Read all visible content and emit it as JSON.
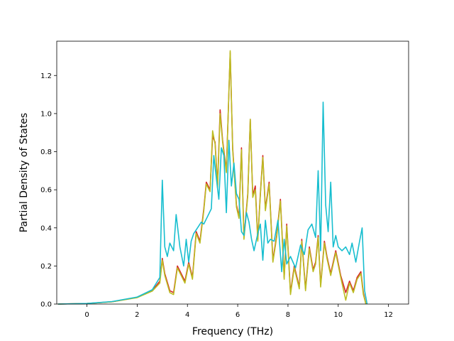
{
  "chart_data": {
    "type": "line",
    "title": "",
    "xlabel": "Frequency (THz)",
    "ylabel": "Partial Density of States",
    "xlim": [
      -1.2,
      12.8
    ],
    "ylim": [
      0,
      1.38
    ],
    "xticks": [
      0,
      2,
      4,
      6,
      8,
      10,
      12
    ],
    "yticks": [
      0.0,
      0.2,
      0.4,
      0.6,
      0.8,
      1.0,
      1.2
    ],
    "xtick_labels": [
      "0",
      "2",
      "4",
      "6",
      "8",
      "10",
      "12"
    ],
    "ytick_labels": [
      "0.0",
      "0.2",
      "0.4",
      "0.6",
      "0.8",
      "1.0",
      "1.2"
    ],
    "grid": false,
    "legend": "none",
    "series": [
      {
        "color": "#d62728",
        "points": [
          [
            -1.15,
            0
          ],
          [
            0,
            0.003
          ],
          [
            1,
            0.012
          ],
          [
            2,
            0.035
          ],
          [
            2.6,
            0.07
          ],
          [
            2.9,
            0.12
          ],
          [
            3.0,
            0.24
          ],
          [
            3.1,
            0.16
          ],
          [
            3.3,
            0.07
          ],
          [
            3.45,
            0.06
          ],
          [
            3.6,
            0.2
          ],
          [
            3.75,
            0.16
          ],
          [
            3.9,
            0.12
          ],
          [
            4.05,
            0.22
          ],
          [
            4.2,
            0.14
          ],
          [
            4.35,
            0.38
          ],
          [
            4.5,
            0.33
          ],
          [
            4.65,
            0.5
          ],
          [
            4.75,
            0.64
          ],
          [
            4.9,
            0.6
          ],
          [
            5.0,
            0.88
          ],
          [
            5.1,
            0.85
          ],
          [
            5.2,
            0.62
          ],
          [
            5.3,
            1.02
          ],
          [
            5.4,
            0.86
          ],
          [
            5.55,
            0.7
          ],
          [
            5.7,
            1.32
          ],
          [
            5.8,
            0.82
          ],
          [
            5.95,
            0.52
          ],
          [
            6.05,
            0.46
          ],
          [
            6.15,
            0.82
          ],
          [
            6.25,
            0.35
          ],
          [
            6.4,
            0.58
          ],
          [
            6.5,
            0.97
          ],
          [
            6.6,
            0.57
          ],
          [
            6.7,
            0.62
          ],
          [
            6.8,
            0.34
          ],
          [
            6.9,
            0.58
          ],
          [
            7.0,
            0.78
          ],
          [
            7.1,
            0.5
          ],
          [
            7.25,
            0.64
          ],
          [
            7.4,
            0.23
          ],
          [
            7.55,
            0.36
          ],
          [
            7.7,
            0.55
          ],
          [
            7.85,
            0.14
          ],
          [
            7.95,
            0.42
          ],
          [
            8.1,
            0.06
          ],
          [
            8.25,
            0.2
          ],
          [
            8.45,
            0.09
          ],
          [
            8.55,
            0.34
          ],
          [
            8.7,
            0.08
          ],
          [
            8.85,
            0.3
          ],
          [
            9.0,
            0.18
          ],
          [
            9.1,
            0.22
          ],
          [
            9.2,
            0.36
          ],
          [
            9.3,
            0.1
          ],
          [
            9.45,
            0.33
          ],
          [
            9.55,
            0.25
          ],
          [
            9.7,
            0.16
          ],
          [
            9.9,
            0.28
          ],
          [
            10.1,
            0.15
          ],
          [
            10.3,
            0.06
          ],
          [
            10.45,
            0.12
          ],
          [
            10.6,
            0.07
          ],
          [
            10.75,
            0.14
          ],
          [
            10.9,
            0.17
          ],
          [
            11.0,
            0.06
          ],
          [
            11.1,
            0
          ]
        ]
      },
      {
        "color": "#bcbd22",
        "points": [
          [
            -1.15,
            0
          ],
          [
            0,
            0.003
          ],
          [
            1,
            0.012
          ],
          [
            2,
            0.034
          ],
          [
            2.6,
            0.068
          ],
          [
            2.9,
            0.11
          ],
          [
            3.0,
            0.23
          ],
          [
            3.1,
            0.15
          ],
          [
            3.3,
            0.06
          ],
          [
            3.45,
            0.05
          ],
          [
            3.6,
            0.19
          ],
          [
            3.75,
            0.15
          ],
          [
            3.9,
            0.11
          ],
          [
            4.05,
            0.21
          ],
          [
            4.2,
            0.13
          ],
          [
            4.35,
            0.37
          ],
          [
            4.5,
            0.32
          ],
          [
            4.65,
            0.49
          ],
          [
            4.75,
            0.63
          ],
          [
            4.9,
            0.59
          ],
          [
            5.0,
            0.91
          ],
          [
            5.1,
            0.84
          ],
          [
            5.2,
            0.61
          ],
          [
            5.3,
            1.0
          ],
          [
            5.4,
            0.85
          ],
          [
            5.55,
            0.69
          ],
          [
            5.7,
            1.33
          ],
          [
            5.8,
            0.81
          ],
          [
            5.95,
            0.51
          ],
          [
            6.05,
            0.45
          ],
          [
            6.15,
            0.81
          ],
          [
            6.25,
            0.34
          ],
          [
            6.4,
            0.57
          ],
          [
            6.5,
            0.97
          ],
          [
            6.6,
            0.56
          ],
          [
            6.7,
            0.6
          ],
          [
            6.8,
            0.33
          ],
          [
            6.9,
            0.57
          ],
          [
            7.0,
            0.77
          ],
          [
            7.1,
            0.49
          ],
          [
            7.25,
            0.63
          ],
          [
            7.4,
            0.22
          ],
          [
            7.55,
            0.35
          ],
          [
            7.7,
            0.54
          ],
          [
            7.85,
            0.13
          ],
          [
            7.95,
            0.41
          ],
          [
            8.1,
            0.05
          ],
          [
            8.25,
            0.19
          ],
          [
            8.45,
            0.08
          ],
          [
            8.55,
            0.33
          ],
          [
            8.7,
            0.07
          ],
          [
            8.85,
            0.29
          ],
          [
            9.0,
            0.17
          ],
          [
            9.1,
            0.21
          ],
          [
            9.2,
            0.35
          ],
          [
            9.3,
            0.09
          ],
          [
            9.45,
            0.32
          ],
          [
            9.55,
            0.24
          ],
          [
            9.7,
            0.15
          ],
          [
            9.9,
            0.27
          ],
          [
            10.1,
            0.14
          ],
          [
            10.3,
            0.02
          ],
          [
            10.45,
            0.11
          ],
          [
            10.6,
            0.06
          ],
          [
            10.75,
            0.13
          ],
          [
            10.9,
            0.16
          ],
          [
            11.0,
            0.05
          ],
          [
            11.1,
            0
          ]
        ]
      },
      {
        "color": "#17becf",
        "points": [
          [
            -1.15,
            0
          ],
          [
            0,
            0.003
          ],
          [
            1,
            0.013
          ],
          [
            2,
            0.037
          ],
          [
            2.6,
            0.075
          ],
          [
            2.9,
            0.14
          ],
          [
            3.0,
            0.65
          ],
          [
            3.1,
            0.3
          ],
          [
            3.2,
            0.25
          ],
          [
            3.3,
            0.32
          ],
          [
            3.45,
            0.28
          ],
          [
            3.55,
            0.47
          ],
          [
            3.7,
            0.3
          ],
          [
            3.85,
            0.2
          ],
          [
            3.95,
            0.34
          ],
          [
            4.05,
            0.22
          ],
          [
            4.15,
            0.33
          ],
          [
            4.25,
            0.37
          ],
          [
            4.4,
            0.4
          ],
          [
            4.55,
            0.43
          ],
          [
            4.65,
            0.42
          ],
          [
            4.8,
            0.46
          ],
          [
            4.95,
            0.5
          ],
          [
            5.05,
            0.78
          ],
          [
            5.15,
            0.66
          ],
          [
            5.25,
            0.55
          ],
          [
            5.35,
            0.82
          ],
          [
            5.45,
            0.78
          ],
          [
            5.55,
            0.48
          ],
          [
            5.65,
            0.86
          ],
          [
            5.75,
            0.62
          ],
          [
            5.85,
            0.74
          ],
          [
            5.95,
            0.58
          ],
          [
            6.05,
            0.55
          ],
          [
            6.15,
            0.38
          ],
          [
            6.25,
            0.36
          ],
          [
            6.35,
            0.48
          ],
          [
            6.45,
            0.43
          ],
          [
            6.55,
            0.34
          ],
          [
            6.65,
            0.28
          ],
          [
            6.8,
            0.37
          ],
          [
            6.9,
            0.42
          ],
          [
            7.0,
            0.23
          ],
          [
            7.1,
            0.44
          ],
          [
            7.2,
            0.32
          ],
          [
            7.3,
            0.34
          ],
          [
            7.45,
            0.33
          ],
          [
            7.6,
            0.44
          ],
          [
            7.75,
            0.17
          ],
          [
            7.85,
            0.34
          ],
          [
            7.95,
            0.21
          ],
          [
            8.1,
            0.25
          ],
          [
            8.3,
            0.19
          ],
          [
            8.5,
            0.31
          ],
          [
            8.65,
            0.26
          ],
          [
            8.8,
            0.39
          ],
          [
            8.95,
            0.42
          ],
          [
            9.1,
            0.35
          ],
          [
            9.2,
            0.7
          ],
          [
            9.3,
            0.28
          ],
          [
            9.4,
            1.06
          ],
          [
            9.5,
            0.52
          ],
          [
            9.6,
            0.38
          ],
          [
            9.7,
            0.64
          ],
          [
            9.8,
            0.3
          ],
          [
            9.9,
            0.36
          ],
          [
            10.0,
            0.3
          ],
          [
            10.15,
            0.28
          ],
          [
            10.3,
            0.3
          ],
          [
            10.45,
            0.26
          ],
          [
            10.55,
            0.32
          ],
          [
            10.7,
            0.22
          ],
          [
            10.85,
            0.33
          ],
          [
            10.95,
            0.4
          ],
          [
            11.05,
            0.07
          ],
          [
            11.15,
            0
          ]
        ]
      }
    ]
  }
}
